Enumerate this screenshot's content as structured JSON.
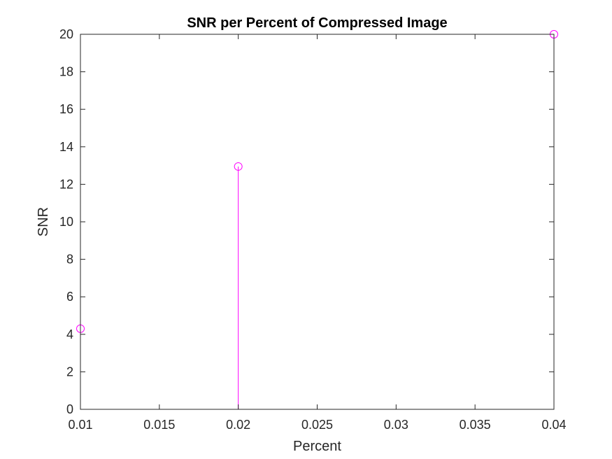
{
  "chart_data": {
    "type": "stem",
    "title": "SNR per Percent of Compressed Image",
    "xlabel": "Percent",
    "ylabel": "SNR",
    "xlim": [
      0.01,
      0.04
    ],
    "ylim": [
      0,
      20
    ],
    "xticks": [
      0.01,
      0.015,
      0.02,
      0.025,
      0.03,
      0.035,
      0.04
    ],
    "xtick_labels": [
      "0.01",
      "0.015",
      "0.02",
      "0.025",
      "0.03",
      "0.035",
      "0.04"
    ],
    "yticks": [
      0,
      2,
      4,
      6,
      8,
      10,
      12,
      14,
      16,
      18,
      20
    ],
    "ytick_labels": [
      "0",
      "2",
      "4",
      "6",
      "8",
      "10",
      "12",
      "14",
      "16",
      "18",
      "20"
    ],
    "grid": false,
    "series": [
      {
        "color": "#ff00ff",
        "marker": "open-circle",
        "x": [
          0.01,
          0.02,
          0.04
        ],
        "y": [
          4.3,
          12.95,
          20
        ]
      }
    ]
  }
}
